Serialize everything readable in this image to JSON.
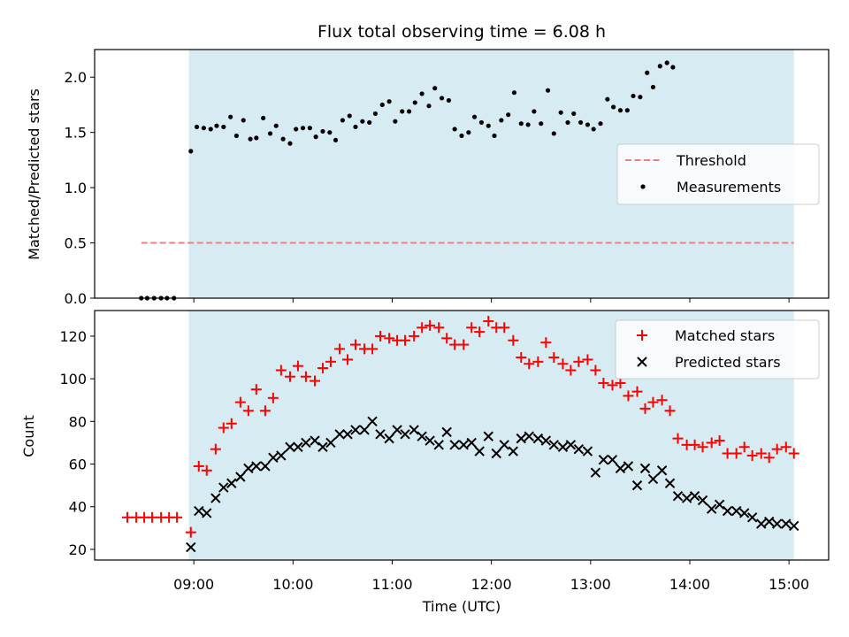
{
  "chart_data": [
    {
      "type": "scatter",
      "title": "Flux total observing time = 6.08 h",
      "xlabel": "",
      "ylabel": "Matched/Predicted stars",
      "x_range_hours": [
        8.0,
        15.4
      ],
      "ylim": [
        0.0,
        2.25
      ],
      "yticks": [
        "0.0",
        "0.5",
        "1.0",
        "1.5",
        "2.0"
      ],
      "observing_window_hours": [
        8.95,
        15.05
      ],
      "threshold": {
        "name": "Threshold",
        "value": 0.5,
        "x_start": 8.47,
        "x_end": 15.05,
        "color": "#f08080"
      },
      "series": [
        {
          "name": "Measurements",
          "color": "#000000",
          "points": [
            [
              8.47,
              0.0
            ],
            [
              8.53,
              0.0
            ],
            [
              8.6,
              0.0
            ],
            [
              8.67,
              0.0
            ],
            [
              8.73,
              0.0
            ],
            [
              8.8,
              0.0
            ],
            [
              8.97,
              1.33
            ],
            [
              9.03,
              1.55
            ],
            [
              9.1,
              1.54
            ],
            [
              9.17,
              1.53
            ],
            [
              9.23,
              1.56
            ],
            [
              9.3,
              1.55
            ],
            [
              9.37,
              1.64
            ],
            [
              9.43,
              1.47
            ],
            [
              9.5,
              1.61
            ],
            [
              9.57,
              1.44
            ],
            [
              9.63,
              1.45
            ],
            [
              9.7,
              1.63
            ],
            [
              9.77,
              1.49
            ],
            [
              9.83,
              1.56
            ],
            [
              9.9,
              1.44
            ],
            [
              9.97,
              1.4
            ],
            [
              10.03,
              1.53
            ],
            [
              10.1,
              1.54
            ],
            [
              10.17,
              1.54
            ],
            [
              10.23,
              1.46
            ],
            [
              10.3,
              1.51
            ],
            [
              10.37,
              1.5
            ],
            [
              10.43,
              1.43
            ],
            [
              10.5,
              1.61
            ],
            [
              10.57,
              1.65
            ],
            [
              10.63,
              1.55
            ],
            [
              10.7,
              1.6
            ],
            [
              10.77,
              1.59
            ],
            [
              10.83,
              1.67
            ],
            [
              10.9,
              1.75
            ],
            [
              10.97,
              1.78
            ],
            [
              11.03,
              1.6
            ],
            [
              11.1,
              1.69
            ],
            [
              11.17,
              1.69
            ],
            [
              11.23,
              1.77
            ],
            [
              11.3,
              1.85
            ],
            [
              11.37,
              1.74
            ],
            [
              11.43,
              1.9
            ],
            [
              11.5,
              1.81
            ],
            [
              11.57,
              1.79
            ],
            [
              11.63,
              1.53
            ],
            [
              11.7,
              1.47
            ],
            [
              11.77,
              1.5
            ],
            [
              11.83,
              1.64
            ],
            [
              11.9,
              1.59
            ],
            [
              11.97,
              1.56
            ],
            [
              12.03,
              1.47
            ],
            [
              12.1,
              1.61
            ],
            [
              12.17,
              1.66
            ],
            [
              12.23,
              1.86
            ],
            [
              12.3,
              1.58
            ],
            [
              12.37,
              1.57
            ],
            [
              12.43,
              1.69
            ],
            [
              12.5,
              1.58
            ],
            [
              12.57,
              1.88
            ],
            [
              12.63,
              1.49
            ],
            [
              12.7,
              1.68
            ],
            [
              12.77,
              1.59
            ],
            [
              12.83,
              1.67
            ],
            [
              12.9,
              1.59
            ],
            [
              12.97,
              1.57
            ],
            [
              13.03,
              1.53
            ],
            [
              13.1,
              1.58
            ],
            [
              13.17,
              1.8
            ],
            [
              13.23,
              1.73
            ],
            [
              13.3,
              1.7
            ],
            [
              13.37,
              1.7
            ],
            [
              13.43,
              1.83
            ],
            [
              13.5,
              1.82
            ],
            [
              13.57,
              2.04
            ],
            [
              13.63,
              1.91
            ],
            [
              13.7,
              2.1
            ],
            [
              13.77,
              2.13
            ],
            [
              13.83,
              2.09
            ]
          ]
        }
      ],
      "legend": [
        "Threshold",
        "Measurements"
      ],
      "legend_position": "right"
    },
    {
      "type": "scatter",
      "title": "",
      "xlabel": "Time (UTC)",
      "ylabel": "Count",
      "x_range_hours": [
        8.0,
        15.4
      ],
      "ylim": [
        15,
        132
      ],
      "yticks": [
        "20",
        "40",
        "60",
        "80",
        "100",
        "120"
      ],
      "xticks": [
        "09:00",
        "10:00",
        "11:00",
        "12:00",
        "13:00",
        "14:00",
        "15:00"
      ],
      "observing_window_hours": [
        8.95,
        15.05
      ],
      "series": [
        {
          "name": "Matched stars",
          "marker": "+",
          "color": "#ff0000",
          "points": [
            [
              8.33,
              35
            ],
            [
              8.42,
              35
            ],
            [
              8.5,
              35
            ],
            [
              8.58,
              35
            ],
            [
              8.67,
              35
            ],
            [
              8.75,
              35
            ],
            [
              8.83,
              35
            ],
            [
              8.97,
              28
            ],
            [
              9.05,
              59
            ],
            [
              9.13,
              57
            ],
            [
              9.22,
              67
            ],
            [
              9.3,
              77
            ],
            [
              9.38,
              79
            ],
            [
              9.47,
              89
            ],
            [
              9.55,
              85
            ],
            [
              9.63,
              95
            ],
            [
              9.72,
              85
            ],
            [
              9.8,
              91
            ],
            [
              9.88,
              104
            ],
            [
              9.97,
              101
            ],
            [
              10.05,
              106
            ],
            [
              10.13,
              101
            ],
            [
              10.22,
              99
            ],
            [
              10.3,
              105
            ],
            [
              10.38,
              108
            ],
            [
              10.47,
              114
            ],
            [
              10.55,
              109
            ],
            [
              10.63,
              116
            ],
            [
              10.72,
              114
            ],
            [
              10.8,
              114
            ],
            [
              10.88,
              120
            ],
            [
              10.97,
              119
            ],
            [
              11.05,
              118
            ],
            [
              11.13,
              118
            ],
            [
              11.22,
              120
            ],
            [
              11.3,
              124
            ],
            [
              11.38,
              125
            ],
            [
              11.47,
              124
            ],
            [
              11.55,
              119
            ],
            [
              11.63,
              116
            ],
            [
              11.72,
              116
            ],
            [
              11.8,
              124
            ],
            [
              11.88,
              122
            ],
            [
              11.97,
              127
            ],
            [
              12.05,
              124
            ],
            [
              12.13,
              124
            ],
            [
              12.22,
              118
            ],
            [
              12.3,
              110
            ],
            [
              12.38,
              107
            ],
            [
              12.47,
              108
            ],
            [
              12.55,
              117
            ],
            [
              12.63,
              110
            ],
            [
              12.72,
              107
            ],
            [
              12.8,
              104
            ],
            [
              12.88,
              108
            ],
            [
              12.97,
              109
            ],
            [
              13.05,
              104
            ],
            [
              13.13,
              98
            ],
            [
              13.22,
              97
            ],
            [
              13.3,
              98
            ],
            [
              13.38,
              92
            ],
            [
              13.47,
              94
            ],
            [
              13.55,
              86
            ],
            [
              13.63,
              89
            ],
            [
              13.72,
              90
            ],
            [
              13.8,
              85
            ],
            [
              13.88,
              72
            ],
            [
              13.97,
              69
            ],
            [
              14.05,
              69
            ],
            [
              14.13,
              68
            ],
            [
              14.22,
              70
            ],
            [
              14.3,
              71
            ],
            [
              14.38,
              65
            ],
            [
              14.47,
              65
            ],
            [
              14.55,
              68
            ],
            [
              14.63,
              64
            ],
            [
              14.72,
              65
            ],
            [
              14.8,
              63
            ],
            [
              14.88,
              67
            ],
            [
              14.97,
              68
            ],
            [
              15.05,
              65
            ]
          ]
        },
        {
          "name": "Predicted stars",
          "marker": "x",
          "color": "#000000",
          "points": [
            [
              8.97,
              21
            ],
            [
              9.05,
              38
            ],
            [
              9.13,
              37
            ],
            [
              9.22,
              44
            ],
            [
              9.3,
              49
            ],
            [
              9.38,
              51
            ],
            [
              9.47,
              54
            ],
            [
              9.55,
              58
            ],
            [
              9.63,
              59
            ],
            [
              9.72,
              59
            ],
            [
              9.8,
              63
            ],
            [
              9.88,
              64
            ],
            [
              9.97,
              68
            ],
            [
              10.05,
              68
            ],
            [
              10.13,
              70
            ],
            [
              10.22,
              71
            ],
            [
              10.3,
              68
            ],
            [
              10.38,
              70
            ],
            [
              10.47,
              74
            ],
            [
              10.55,
              74
            ],
            [
              10.63,
              76
            ],
            [
              10.72,
              76
            ],
            [
              10.8,
              80
            ],
            [
              10.88,
              74
            ],
            [
              10.97,
              72
            ],
            [
              11.05,
              76
            ],
            [
              11.13,
              74
            ],
            [
              11.22,
              76
            ],
            [
              11.3,
              73
            ],
            [
              11.38,
              71
            ],
            [
              11.47,
              69
            ],
            [
              11.55,
              75
            ],
            [
              11.63,
              69
            ],
            [
              11.72,
              69
            ],
            [
              11.8,
              70
            ],
            [
              11.88,
              66
            ],
            [
              11.97,
              73
            ],
            [
              12.05,
              65
            ],
            [
              12.13,
              69
            ],
            [
              12.22,
              66
            ],
            [
              12.3,
              72
            ],
            [
              12.38,
              73
            ],
            [
              12.47,
              72
            ],
            [
              12.55,
              71
            ],
            [
              12.63,
              69
            ],
            [
              12.72,
              68
            ],
            [
              12.8,
              69
            ],
            [
              12.88,
              67
            ],
            [
              12.97,
              66
            ],
            [
              13.05,
              56
            ],
            [
              13.13,
              62
            ],
            [
              13.22,
              62
            ],
            [
              13.3,
              58
            ],
            [
              13.38,
              59
            ],
            [
              13.47,
              50
            ],
            [
              13.55,
              58
            ],
            [
              13.63,
              53
            ],
            [
              13.72,
              57
            ],
            [
              13.8,
              51
            ],
            [
              13.88,
              45
            ],
            [
              13.97,
              44
            ],
            [
              14.05,
              45
            ],
            [
              14.13,
              43
            ],
            [
              14.22,
              39
            ],
            [
              14.3,
              41
            ],
            [
              14.38,
              38
            ],
            [
              14.47,
              38
            ],
            [
              14.55,
              37
            ],
            [
              14.63,
              35
            ],
            [
              14.72,
              32
            ],
            [
              14.8,
              33
            ],
            [
              14.88,
              32
            ],
            [
              14.97,
              32
            ],
            [
              15.05,
              31
            ]
          ]
        }
      ],
      "legend": [
        "Matched stars",
        "Predicted stars"
      ],
      "legend_position": "top-right"
    }
  ]
}
